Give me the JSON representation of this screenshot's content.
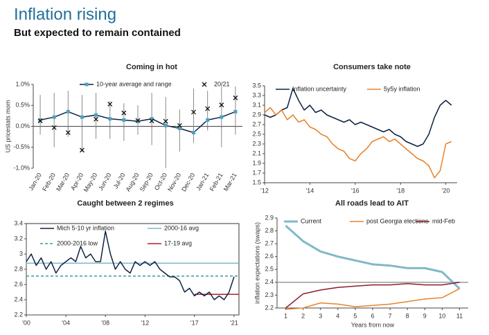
{
  "title": "Inflation rising",
  "subtitle": "But expected to remain contained",
  "chart_data": [
    {
      "type": "line",
      "title": "Coming in hot",
      "ylabel": "US pricestats mom",
      "categories": [
        "Jan-20",
        "Feb-20",
        "Mar-20",
        "Apr-20",
        "May-20",
        "Jun-20",
        "Jul-20",
        "Aug-20",
        "Sep-20",
        "Oct-20",
        "Nov-20",
        "Dec-20",
        "Jan-21",
        "Feb-21",
        "Mar-21"
      ],
      "ylim": [
        -1.0,
        1.0
      ],
      "yticks": [
        {
          "value": 1.0,
          "label": "1.0%"
        },
        {
          "value": 0.5,
          "label": "0.5%"
        },
        {
          "value": 0.0,
          "label": "0.0%"
        },
        {
          "value": -0.5,
          "label": "-0.5%"
        },
        {
          "value": -1.0,
          "label": "-1.0%"
        }
      ],
      "series": [
        {
          "name": "10-year average and range",
          "color": "#0d2240",
          "marker": "square",
          "marker_color": "#4aa3c4",
          "values": [
            0.15,
            0.22,
            0.35,
            0.22,
            0.27,
            0.18,
            0.15,
            0.12,
            0.18,
            0.02,
            -0.05,
            -0.15,
            0.15,
            0.22,
            0.35
          ],
          "low": [
            -0.2,
            -0.5,
            -0.25,
            -0.6,
            -0.3,
            -0.3,
            -0.35,
            -0.2,
            -0.45,
            -1.0,
            -0.6,
            -0.4,
            -0.1,
            -0.5,
            -0.2
          ],
          "high": [
            0.75,
            0.8,
            0.85,
            0.75,
            0.8,
            0.6,
            0.55,
            0.5,
            0.8,
            0.7,
            0.4,
            0.9,
            0.85,
            0.95,
            0.95
          ]
        },
        {
          "name": "20/21",
          "color": "#111111",
          "marker": "x",
          "line": false,
          "values": [
            0.13,
            -0.03,
            -0.15,
            -0.57,
            0.17,
            0.53,
            0.32,
            0.14,
            0.13,
            0.12,
            0.02,
            0.34,
            0.42,
            0.51,
            0.68
          ]
        }
      ]
    },
    {
      "type": "line",
      "title": "Consumers take note",
      "x": [
        2012,
        2012.25,
        2012.5,
        2012.75,
        2013,
        2013.25,
        2013.5,
        2013.75,
        2014,
        2014.25,
        2014.5,
        2014.75,
        2015,
        2015.25,
        2015.5,
        2015.75,
        2016,
        2016.25,
        2016.5,
        2016.75,
        2017,
        2017.25,
        2017.5,
        2017.75,
        2018,
        2018.25,
        2018.5,
        2018.75,
        2019,
        2019.25,
        2019.5,
        2019.75,
        2020,
        2020.25
      ],
      "xlim": [
        2012,
        2020.5
      ],
      "xticks": [
        {
          "value": 2012,
          "label": "'12"
        },
        {
          "value": 2014,
          "label": "'14"
        },
        {
          "value": 2016,
          "label": "'16"
        },
        {
          "value": 2018,
          "label": "'18"
        },
        {
          "value": 2020,
          "label": "'20"
        }
      ],
      "ylim": [
        1.5,
        3.5
      ],
      "yticks": [
        1.5,
        1.7,
        1.9,
        2.1,
        2.3,
        2.5,
        2.7,
        2.9,
        3.1,
        3.3,
        3.5
      ],
      "series": [
        {
          "name": "Inflation uncertainty",
          "color": "#0d2240",
          "values": [
            2.9,
            2.85,
            2.9,
            3.0,
            3.05,
            3.45,
            3.2,
            3.0,
            3.1,
            2.95,
            3.0,
            2.9,
            2.85,
            2.8,
            2.75,
            2.8,
            2.7,
            2.75,
            2.7,
            2.65,
            2.6,
            2.55,
            2.6,
            2.5,
            2.45,
            2.35,
            2.3,
            2.25,
            2.3,
            2.5,
            2.85,
            3.1,
            3.2,
            3.1
          ]
        },
        {
          "name": "5y5y inflation",
          "color": "#e8822a",
          "values": [
            2.95,
            3.05,
            2.9,
            3.0,
            2.8,
            2.9,
            2.75,
            2.8,
            2.65,
            2.6,
            2.5,
            2.45,
            2.3,
            2.2,
            2.15,
            2.0,
            1.95,
            2.1,
            2.2,
            2.35,
            2.4,
            2.45,
            2.35,
            2.4,
            2.3,
            2.2,
            2.1,
            2.0,
            1.95,
            1.85,
            1.6,
            1.75,
            2.3,
            2.35
          ]
        }
      ]
    },
    {
      "type": "line",
      "title": "Caught between 2 regimes",
      "frame": true,
      "x": [
        2000,
        2000.5,
        2001,
        2001.5,
        2002,
        2002.5,
        2003,
        2003.5,
        2004,
        2004.5,
        2005,
        2005.5,
        2006,
        2006.5,
        2007,
        2007.5,
        2008,
        2008.5,
        2009,
        2009.5,
        2010,
        2010.5,
        2011,
        2011.5,
        2012,
        2012.5,
        2013,
        2013.5,
        2014,
        2014.5,
        2015,
        2015.5,
        2016,
        2016.5,
        2017,
        2017.5,
        2018,
        2018.5,
        2019,
        2019.5,
        2020,
        2020.5,
        2021
      ],
      "xlim": [
        2000,
        2021.5
      ],
      "xticks": [
        {
          "value": 2000,
          "label": "'00"
        },
        {
          "value": 2004,
          "label": "'04"
        },
        {
          "value": 2008,
          "label": "'08"
        },
        {
          "value": 2012,
          "label": "'12"
        },
        {
          "value": 2017,
          "label": "'17"
        },
        {
          "value": 2021,
          "label": "'21"
        }
      ],
      "ylim": [
        2.2,
        3.4
      ],
      "yticks": [
        2.2,
        2.4,
        2.6,
        2.8,
        3,
        3.2,
        3.4
      ],
      "series": [
        {
          "name": "Mich 5-10 yr inflation",
          "color": "#0d2240",
          "values": [
            2.9,
            3.0,
            2.85,
            2.95,
            2.8,
            2.9,
            2.75,
            2.85,
            2.9,
            2.95,
            2.9,
            3.1,
            2.95,
            3.0,
            2.9,
            2.9,
            3.3,
            3.0,
            2.8,
            2.9,
            2.8,
            2.75,
            2.9,
            2.85,
            2.9,
            2.85,
            2.9,
            2.8,
            2.75,
            2.7,
            2.7,
            2.65,
            2.5,
            2.55,
            2.45,
            2.5,
            2.45,
            2.5,
            2.4,
            2.45,
            2.4,
            2.5,
            2.7
          ]
        }
      ],
      "reference_lines": [
        {
          "name": "2000-16 avg",
          "color": "#7fb8cc",
          "value": 2.88
        },
        {
          "name": "2000-2016 low",
          "color": "#3a9a9a",
          "value": 2.71,
          "dashed": true
        },
        {
          "name": "17-19 avg",
          "color": "#b01e2e",
          "value": 2.47,
          "from": 2017
        }
      ]
    },
    {
      "type": "line",
      "title": "All roads lead to AIT",
      "ylabel": "inflation expectations (swaps)",
      "xlabel": "Years from now",
      "x": [
        1,
        2,
        3,
        4,
        5,
        6,
        7,
        8,
        9,
        10,
        11
      ],
      "xlim": [
        0.5,
        11.5
      ],
      "xticks": [
        1,
        2,
        3,
        4,
        5,
        6,
        7,
        8,
        9,
        10,
        11
      ],
      "ylim": [
        2.2,
        2.9
      ],
      "yticks": [
        2.2,
        2.3,
        2.4,
        2.5,
        2.6,
        2.7,
        2.8,
        2.9
      ],
      "series": [
        {
          "name": "Current",
          "color": "#7fb8c8",
          "width": 3,
          "values": [
            2.84,
            2.72,
            2.64,
            2.6,
            2.57,
            2.54,
            2.53,
            2.51,
            2.51,
            2.48,
            2.35
          ]
        },
        {
          "name": "post Georgia elections",
          "color": "#e8822a",
          "values": [
            2.19,
            2.2,
            2.24,
            2.23,
            2.21,
            2.22,
            2.23,
            2.25,
            2.27,
            2.28,
            2.35
          ]
        },
        {
          "name": "mid-Feb",
          "color": "#8b1a2e",
          "values": [
            2.2,
            2.31,
            2.34,
            2.36,
            2.37,
            2.38,
            2.38,
            2.39,
            2.38,
            2.38,
            2.4
          ]
        }
      ],
      "reference_lines": [
        {
          "color": "#999999",
          "value": 2.4
        }
      ]
    }
  ]
}
